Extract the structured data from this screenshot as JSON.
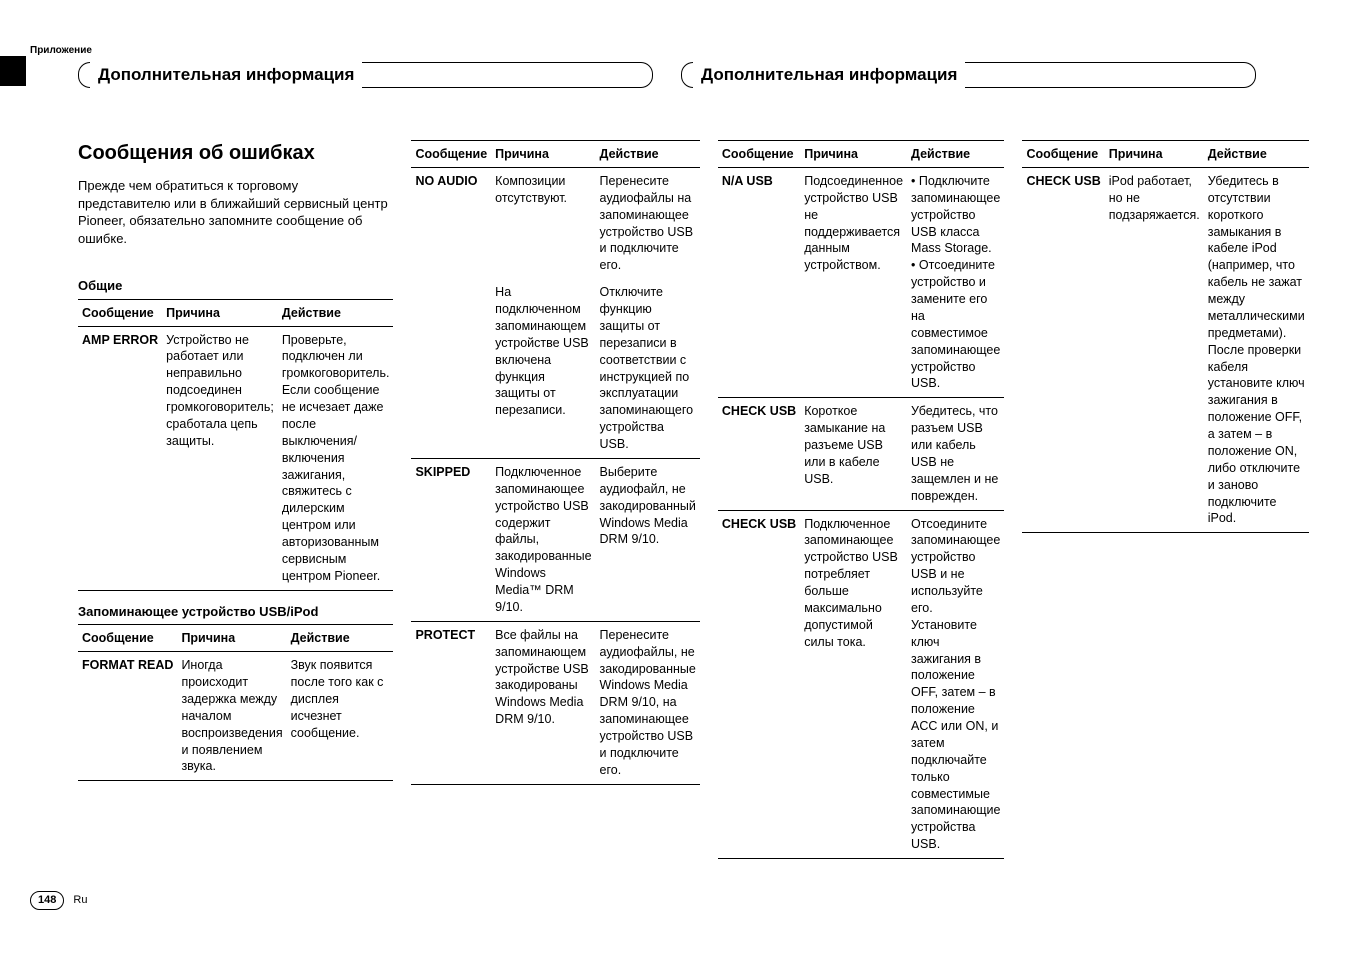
{
  "appendix_label": "Приложение",
  "header_title": "Дополнительная информация",
  "section_title": "Сообщения об ошибках",
  "intro": "Прежде чем обратиться к торговому представителю или в ближайший сервисный центр Pioneer, обязательно запомните сообщение об ошибке.",
  "sub_general": "Общие",
  "sub_usb": "Запоминающее устройство USB/iPod",
  "th_msg": "Сообщение",
  "th_cause": "Причина",
  "th_action": "Действие",
  "page_num": "148",
  "page_lang": "Ru",
  "t_general": [
    {
      "msg": "AMP ERROR",
      "cause": "Устройство не работает или неправильно подсоединен громкоговоритель; сработала цепь защиты.",
      "action": "Проверьте, подключен ли громкоговоритель. Если сообщение не исчезает даже после выключения/включения зажигания, свяжитесь с дилерским центром или авторизованным сервисным центром Pioneer."
    }
  ],
  "t_usb1": [
    {
      "msg": "FORMAT READ",
      "cause": "Иногда происходит задержка между началом воспроизведения и появлением звука.",
      "action": "Звук появится после того как с дисплея исчезнет сообщение."
    }
  ],
  "t_col2": [
    {
      "msg": "NO AUDIO",
      "cause": "Композиции отсутствуют.",
      "action": "Перенесите аудиофайлы на запоминающее устройство USB и подключите его."
    },
    {
      "msg": "",
      "cause": "На подключенном запоминающем устройстве USB включена функция защиты от перезаписи.",
      "action": "Отключите функцию защиты от перезаписи в соответствии с инструкцией по эксплуатации запоминающего устройства USB."
    },
    {
      "msg": "SKIPPED",
      "cause": "Подключенное запоминающее устройство USB содержит файлы, закодированные Windows Media™ DRM 9/10.",
      "action": "Выберите аудиофайл, не закодированный Windows Media DRM 9/10."
    },
    {
      "msg": "PROTECT",
      "cause": "Все файлы на запоминающем устройстве USB закодированы Windows Media DRM 9/10.",
      "action": "Перенесите аудиофайлы, не закодированные Windows Media DRM 9/10, на запоминающее устройство USB и подключите его."
    }
  ],
  "t_col3": [
    {
      "msg": "N/A USB",
      "cause": "Подсоединенное устройство USB не поддерживается данным устройством.",
      "action": "• Подключите запоминающее устройство USB класса Mass Storage.\n• Отсоедините устройство и замените его на совместимое запоминающее устройство USB."
    },
    {
      "msg": "CHECK USB",
      "cause": "Короткое замыкание на разъеме USB или в кабеле USB.",
      "action": "Убедитесь, что разъем USB или кабель USB не защемлен и не поврежден."
    },
    {
      "msg": "CHECK USB",
      "cause": "Подключенное запоминающее устройство USB потребляет больше максимально допустимой силы тока.",
      "action": "Отсоедините запоминающее устройство USB и не используйте его. Установите ключ зажигания в положение OFF, затем – в положение ACC или ON, и затем подключайте только совместимые запоминающие устройства USB."
    }
  ],
  "t_col4": [
    {
      "msg": "CHECK USB",
      "cause": "iPod работает, но не подзаряжается.",
      "action": "Убедитесь в отсутствии короткого замыкания в кабеле iPod (например, что кабель не зажат между металлическими предметами). После проверки кабеля установите ключ зажигания в положение OFF, а затем – в положение ON, либо отключите и заново подключите iPod."
    }
  ]
}
